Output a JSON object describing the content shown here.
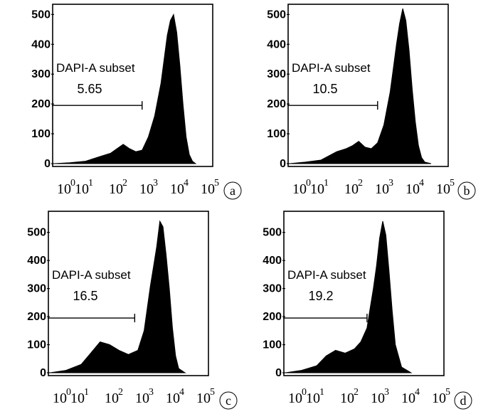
{
  "chart_data": [
    {
      "type": "histogram",
      "panel_label": "a",
      "gate_label": "DAPI-A subset",
      "gate_value": "5.65",
      "gate_range_log10": [
        0,
        2.8
      ],
      "yticks": [
        0,
        100,
        200,
        300,
        400,
        500
      ],
      "ylim": [
        0,
        520
      ],
      "xlim_log10": [
        0,
        5
      ],
      "x_tick_exponents": [
        "0",
        "1",
        "2",
        "3",
        "4",
        "5"
      ],
      "curve": {
        "x": [
          0.0,
          0.5,
          1.0,
          1.5,
          1.8,
          2.0,
          2.2,
          2.4,
          2.6,
          2.8,
          3.0,
          3.2,
          3.4,
          3.5,
          3.6,
          3.7,
          3.8,
          3.9,
          4.0,
          4.1,
          4.2,
          4.3,
          4.4,
          4.5
        ],
        "y": [
          0,
          3,
          8,
          25,
          35,
          50,
          65,
          50,
          40,
          45,
          90,
          160,
          270,
          350,
          430,
          480,
          500,
          440,
          330,
          200,
          90,
          30,
          8,
          0
        ]
      }
    },
    {
      "type": "histogram",
      "panel_label": "b",
      "gate_label": "DAPI-A subset",
      "gate_value": "10.5",
      "gate_range_log10": [
        0,
        2.8
      ],
      "yticks": [
        0,
        100,
        200,
        300,
        400,
        500
      ],
      "ylim": [
        0,
        520
      ],
      "xlim_log10": [
        0,
        5
      ],
      "x_tick_exponents": [
        "0",
        "1",
        "2",
        "3",
        "4",
        "5"
      ],
      "curve": {
        "x": [
          0.0,
          0.5,
          1.0,
          1.5,
          1.8,
          2.0,
          2.2,
          2.4,
          2.6,
          2.8,
          3.0,
          3.2,
          3.3,
          3.4,
          3.5,
          3.6,
          3.7,
          3.8,
          3.9,
          4.0,
          4.1,
          4.2,
          4.3,
          4.5
        ],
        "y": [
          0,
          5,
          12,
          40,
          50,
          60,
          75,
          55,
          50,
          70,
          130,
          240,
          320,
          400,
          470,
          520,
          480,
          380,
          250,
          140,
          60,
          20,
          5,
          0
        ]
      }
    },
    {
      "type": "histogram",
      "panel_label": "c",
      "gate_label": "DAPI-A subset",
      "gate_value": "16.5",
      "gate_range_log10": [
        0,
        2.7
      ],
      "yticks": [
        0,
        100,
        200,
        300,
        400,
        500
      ],
      "ylim": [
        0,
        560
      ],
      "xlim_log10": [
        0,
        5
      ],
      "x_tick_exponents": [
        "0",
        "1",
        "2",
        "3",
        "4",
        "5"
      ],
      "curve": {
        "x": [
          0.0,
          0.5,
          1.0,
          1.3,
          1.6,
          1.9,
          2.2,
          2.5,
          2.8,
          3.0,
          3.1,
          3.2,
          3.3,
          3.4,
          3.5,
          3.6,
          3.7,
          3.8,
          3.9,
          4.0,
          4.1,
          4.3
        ],
        "y": [
          0,
          8,
          30,
          70,
          110,
          100,
          80,
          65,
          80,
          150,
          230,
          310,
          380,
          450,
          540,
          520,
          420,
          300,
          160,
          60,
          15,
          0
        ]
      }
    },
    {
      "type": "histogram",
      "panel_label": "d",
      "gate_label": "DAPI-A subset",
      "gate_value": "19.2",
      "gate_range_log10": [
        0,
        2.6
      ],
      "yticks": [
        0,
        100,
        200,
        300,
        400,
        500
      ],
      "ylim": [
        0,
        560
      ],
      "xlim_log10": [
        0,
        5
      ],
      "x_tick_exponents": [
        "0",
        "1",
        "2",
        "3",
        "4",
        "5"
      ],
      "curve": {
        "x": [
          0.0,
          0.5,
          1.0,
          1.3,
          1.6,
          1.9,
          2.2,
          2.4,
          2.6,
          2.7,
          2.8,
          2.9,
          3.0,
          3.1,
          3.2,
          3.3,
          3.4,
          3.5,
          3.7,
          4.0
        ],
        "y": [
          0,
          8,
          25,
          60,
          80,
          70,
          85,
          110,
          160,
          230,
          300,
          380,
          480,
          540,
          490,
          360,
          220,
          100,
          20,
          0
        ]
      }
    }
  ]
}
